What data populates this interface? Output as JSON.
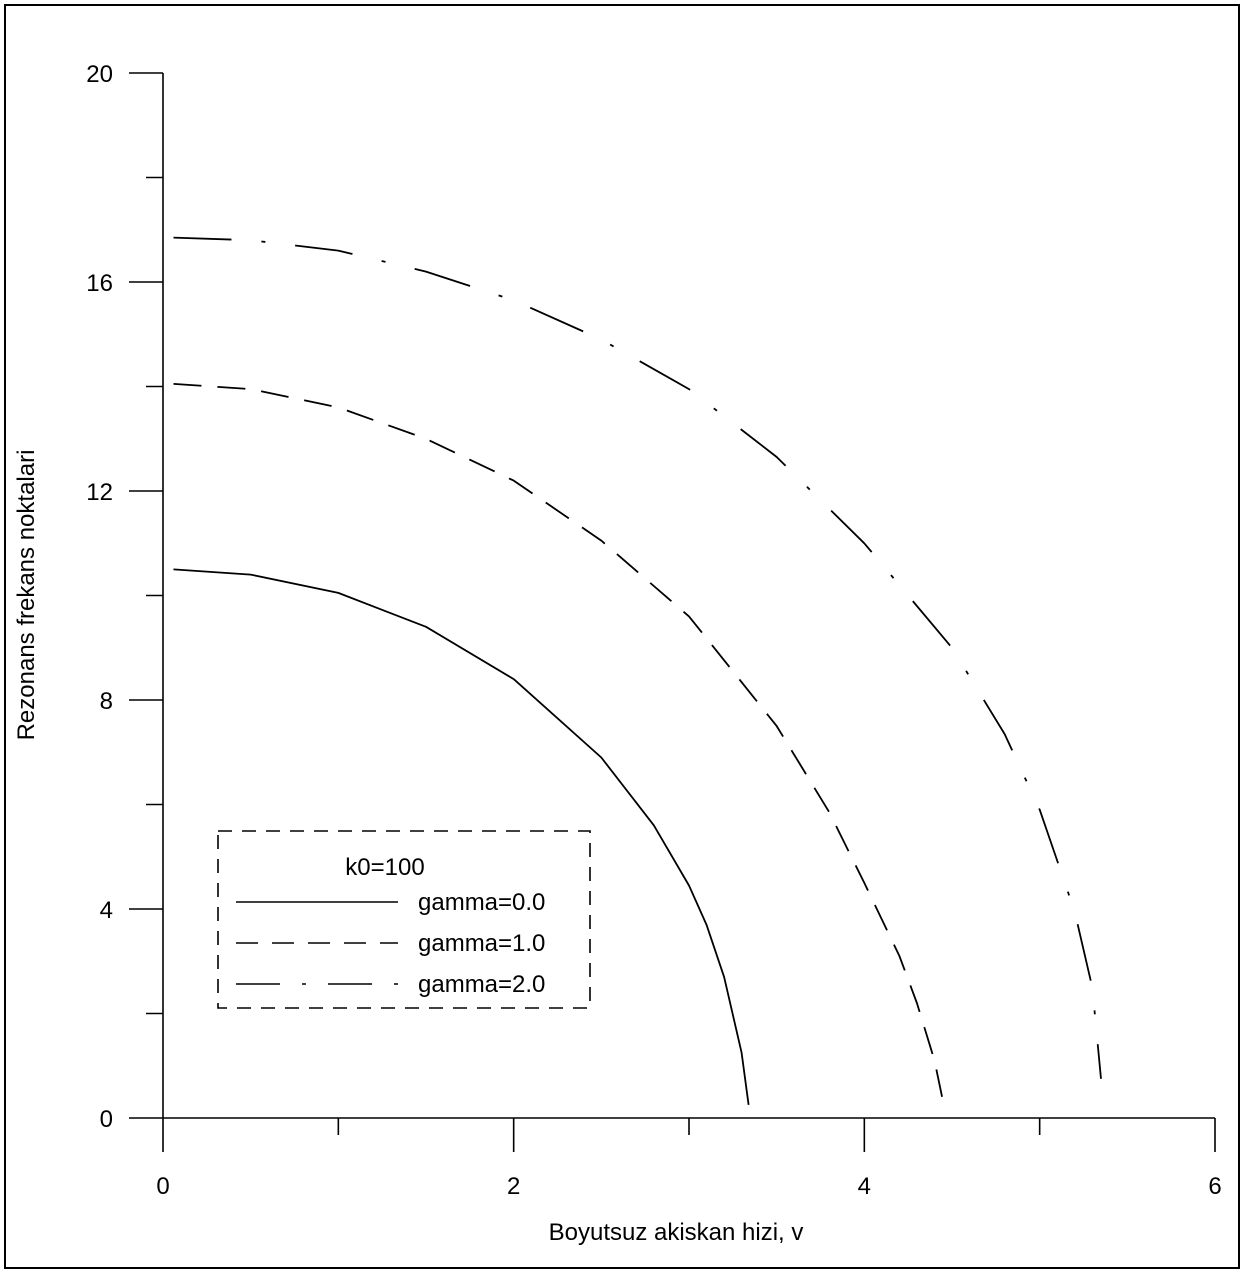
{
  "chart_data": {
    "type": "line",
    "xlabel": "Boyutsuz akiskan hizi, v",
    "ylabel": "Rezonans frekans noktalari",
    "xlim": [
      0,
      6
    ],
    "ylim": [
      0,
      20
    ],
    "x_ticks_major": [
      0,
      2,
      4,
      6
    ],
    "x_ticks_minor": [
      1,
      3,
      5
    ],
    "y_ticks_major": [
      0,
      4,
      8,
      12,
      16,
      20
    ],
    "y_ticks_minor": [
      2,
      6,
      10,
      14,
      18
    ],
    "x_tick_labels": [
      "0",
      "2",
      "4",
      "6"
    ],
    "y_tick_labels": [
      "0",
      "4",
      "8",
      "12",
      "16",
      "20"
    ],
    "grid": false,
    "legend": {
      "title": "k0=100",
      "placement": "lower-left",
      "entries": [
        "gamma=0.0",
        "gamma=1.0",
        "gamma=2.0"
      ]
    },
    "series": [
      {
        "name": "gamma=0.0",
        "line_style": "solid",
        "color": "#000000",
        "x": [
          0.06,
          0.5,
          1.0,
          1.5,
          2.0,
          2.5,
          2.8,
          3.0,
          3.1,
          3.2,
          3.3,
          3.34
        ],
        "y": [
          10.5,
          10.4,
          10.05,
          9.4,
          8.4,
          6.9,
          5.6,
          4.45,
          3.7,
          2.7,
          1.25,
          0.25
        ]
      },
      {
        "name": "gamma=1.0",
        "line_style": "dashed",
        "color": "#000000",
        "x": [
          0.06,
          0.5,
          1.0,
          1.5,
          2.0,
          2.5,
          3.0,
          3.5,
          3.8,
          4.0,
          4.2,
          4.3,
          4.4,
          4.45
        ],
        "y": [
          14.05,
          13.95,
          13.6,
          13.0,
          12.2,
          11.05,
          9.6,
          7.5,
          5.85,
          4.5,
          3.1,
          2.2,
          1.1,
          0.3
        ]
      },
      {
        "name": "gamma=2.0",
        "line_style": "dash-dot",
        "color": "#000000",
        "x": [
          0.06,
          0.5,
          1.0,
          1.5,
          2.0,
          2.5,
          3.0,
          3.5,
          4.0,
          4.5,
          4.8,
          5.0,
          5.2,
          5.3,
          5.35
        ],
        "y": [
          16.85,
          16.8,
          16.6,
          16.2,
          15.65,
          14.9,
          13.95,
          12.65,
          11.0,
          9.0,
          7.35,
          5.9,
          3.95,
          2.5,
          0.75
        ]
      }
    ]
  }
}
